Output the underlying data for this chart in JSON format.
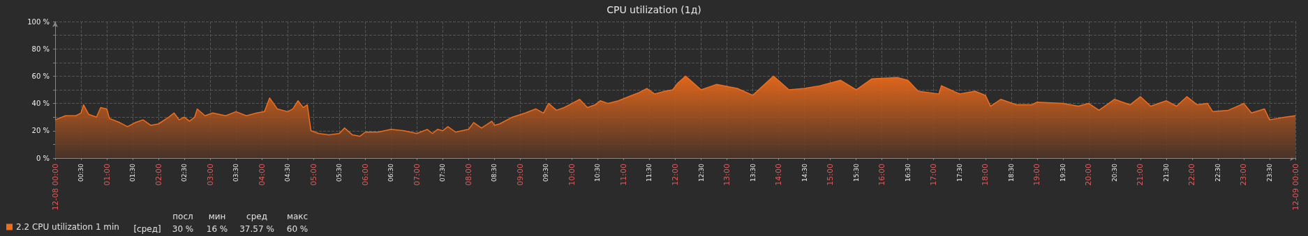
{
  "chart_data": {
    "type": "area",
    "title": "CPU utilization (1д)",
    "x": [
      0,
      0.2,
      0.4,
      0.5,
      0.55,
      0.65,
      0.8,
      0.88,
      1.0,
      1.05,
      1.25,
      1.4,
      1.55,
      1.7,
      1.85,
      2.0,
      2.2,
      2.3,
      2.4,
      2.5,
      2.6,
      2.7,
      2.75,
      2.9,
      3.05,
      3.3,
      3.5,
      3.7,
      3.9,
      4.05,
      4.15,
      4.3,
      4.5,
      4.6,
      4.7,
      4.8,
      4.88,
      4.95,
      5.1,
      5.3,
      5.5,
      5.6,
      5.75,
      5.9,
      6.0,
      6.25,
      6.5,
      6.75,
      7.0,
      7.2,
      7.3,
      7.4,
      7.5,
      7.6,
      7.75,
      8.0,
      8.1,
      8.25,
      8.45,
      8.5,
      8.6,
      8.85,
      9.1,
      9.3,
      9.45,
      9.55,
      9.7,
      9.85,
      10.0,
      10.15,
      10.3,
      10.45,
      10.55,
      10.7,
      10.9,
      11.1,
      11.3,
      11.45,
      11.6,
      11.8,
      11.95,
      12.05,
      12.2,
      12.5,
      12.8,
      13.2,
      13.5,
      13.9,
      14.2,
      14.5,
      14.8,
      15.2,
      15.5,
      15.8,
      16.3,
      16.5,
      16.7,
      17.1,
      17.15,
      17.5,
      17.8,
      18.0,
      18.1,
      18.3,
      18.6,
      18.9,
      19.0,
      19.5,
      19.8,
      20.0,
      20.2,
      20.5,
      20.8,
      21.0,
      21.2,
      21.5,
      21.7,
      21.9,
      22.1,
      22.3,
      22.4,
      22.7,
      23.0,
      23.15,
      23.4,
      23.5,
      23.8,
      24
    ],
    "series": [
      {
        "name": "2.2 CPU utilization 1 min",
        "color": "#f26c1a",
        "values": [
          28,
          31,
          31,
          33,
          39,
          32,
          30,
          37,
          36,
          29,
          26,
          23,
          26,
          28,
          24,
          25,
          30,
          33,
          28,
          30,
          27,
          30,
          36,
          31,
          33,
          31,
          34,
          31,
          33,
          34,
          44,
          36,
          34,
          36,
          42,
          37,
          39,
          20,
          18,
          17,
          18,
          22,
          17,
          16,
          19,
          19,
          21,
          20,
          18,
          21,
          18,
          21,
          20,
          23,
          19,
          21,
          26,
          22,
          27,
          24,
          25,
          30,
          33,
          36,
          33,
          40,
          35,
          37,
          40,
          43,
          37,
          39,
          42,
          40,
          42,
          45,
          48,
          51,
          47,
          49,
          50,
          55,
          60,
          50,
          54,
          51,
          46,
          60,
          50,
          51,
          53,
          57,
          50,
          58,
          59,
          57,
          49,
          47,
          53,
          47,
          49,
          46,
          38,
          43,
          39,
          39,
          41,
          40,
          38,
          40,
          35,
          43,
          39,
          45,
          38,
          42,
          38,
          45,
          39,
          40,
          34,
          35,
          40,
          33,
          36,
          28,
          30,
          31
        ]
      }
    ],
    "xlim": [
      0,
      24
    ],
    "xticks": [
      {
        "value": 0,
        "label": "12-08 00:00"
      },
      {
        "value": 0.5,
        "label": "00:30"
      },
      {
        "value": 1,
        "label": "01:00"
      },
      {
        "value": 1.5,
        "label": "01:30"
      },
      {
        "value": 2,
        "label": "02:00"
      },
      {
        "value": 2.5,
        "label": "02:30"
      },
      {
        "value": 3,
        "label": "03:00"
      },
      {
        "value": 3.5,
        "label": "03:30"
      },
      {
        "value": 4,
        "label": "04:00"
      },
      {
        "value": 4.5,
        "label": "04:30"
      },
      {
        "value": 5,
        "label": "05:00"
      },
      {
        "value": 5.5,
        "label": "05:30"
      },
      {
        "value": 6,
        "label": "06:00"
      },
      {
        "value": 6.5,
        "label": "06:30"
      },
      {
        "value": 7,
        "label": "07:00"
      },
      {
        "value": 7.5,
        "label": "07:30"
      },
      {
        "value": 8,
        "label": "08:00"
      },
      {
        "value": 8.5,
        "label": "08:30"
      },
      {
        "value": 9,
        "label": "09:00"
      },
      {
        "value": 9.5,
        "label": "09:30"
      },
      {
        "value": 10,
        "label": "10:00"
      },
      {
        "value": 10.5,
        "label": "10:30"
      },
      {
        "value": 11,
        "label": "11:00"
      },
      {
        "value": 11.5,
        "label": "11:30"
      },
      {
        "value": 12,
        "label": "12:00"
      },
      {
        "value": 12.5,
        "label": "12:30"
      },
      {
        "value": 13,
        "label": "13:00"
      },
      {
        "value": 13.5,
        "label": "13:30"
      },
      {
        "value": 14,
        "label": "14:00"
      },
      {
        "value": 14.5,
        "label": "14:30"
      },
      {
        "value": 15,
        "label": "15:00"
      },
      {
        "value": 15.5,
        "label": "15:30"
      },
      {
        "value": 16,
        "label": "16:00"
      },
      {
        "value": 16.5,
        "label": "16:30"
      },
      {
        "value": 17,
        "label": "17:00"
      },
      {
        "value": 17.5,
        "label": "17:30"
      },
      {
        "value": 18,
        "label": "18:00"
      },
      {
        "value": 18.5,
        "label": "18:30"
      },
      {
        "value": 19,
        "label": "19:00"
      },
      {
        "value": 19.5,
        "label": "19:30"
      },
      {
        "value": 20,
        "label": "20:00"
      },
      {
        "value": 20.5,
        "label": "20:30"
      },
      {
        "value": 21,
        "label": "21:00"
      },
      {
        "value": 21.5,
        "label": "21:30"
      },
      {
        "value": 22,
        "label": "22:00"
      },
      {
        "value": 22.5,
        "label": "22:30"
      },
      {
        "value": 23,
        "label": "23:00"
      },
      {
        "value": 23.5,
        "label": "23:30"
      },
      {
        "value": 24,
        "label": "12-09 00:00"
      }
    ],
    "ylim": [
      0,
      100
    ],
    "yticks": [
      {
        "value": 0,
        "label": "0 %"
      },
      {
        "value": 10,
        "label": null
      },
      {
        "value": 20,
        "label": "20 %"
      },
      {
        "value": 30,
        "label": null
      },
      {
        "value": 40,
        "label": "40 %"
      },
      {
        "value": 50,
        "label": null
      },
      {
        "value": 60,
        "label": "60 %"
      },
      {
        "value": 70,
        "label": null
      },
      {
        "value": 80,
        "label": "80 %"
      },
      {
        "value": 90,
        "label": null
      },
      {
        "value": 100,
        "label": "100 %"
      }
    ],
    "grid": true,
    "legend": "bottom left",
    "annotations": [
      "[сред]",
      "посл",
      "мин",
      "сред",
      "макс",
      "30 %",
      "16 %",
      "37.57 %",
      "60 %"
    ]
  }
}
